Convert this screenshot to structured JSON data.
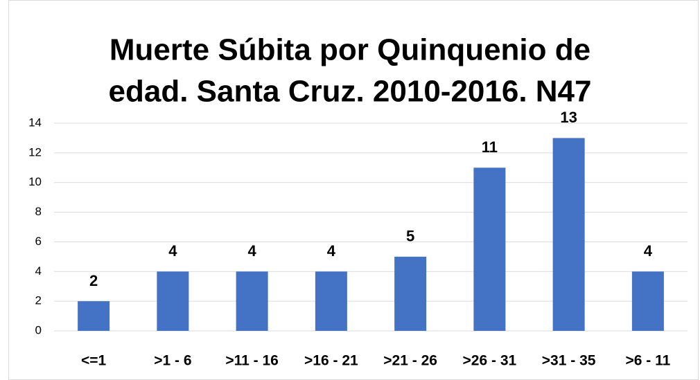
{
  "chart_data": {
    "type": "bar",
    "title": [
      "Muerte Súbita por Quinquenio de",
      "edad. Santa Cruz. 2010-2016. N47"
    ],
    "categories": [
      "<=1",
      ">1 - 6",
      ">11 - 16",
      ">16 - 21",
      ">21 - 26",
      ">26 - 31",
      ">31 - 35",
      ">6 - 11"
    ],
    "values": [
      2,
      4,
      4,
      4,
      5,
      11,
      13,
      4
    ],
    "color": "#4472c4",
    "ylim": [
      0,
      14
    ],
    "yticks": [
      0,
      2,
      4,
      6,
      8,
      10,
      12,
      14
    ],
    "grid": true
  }
}
